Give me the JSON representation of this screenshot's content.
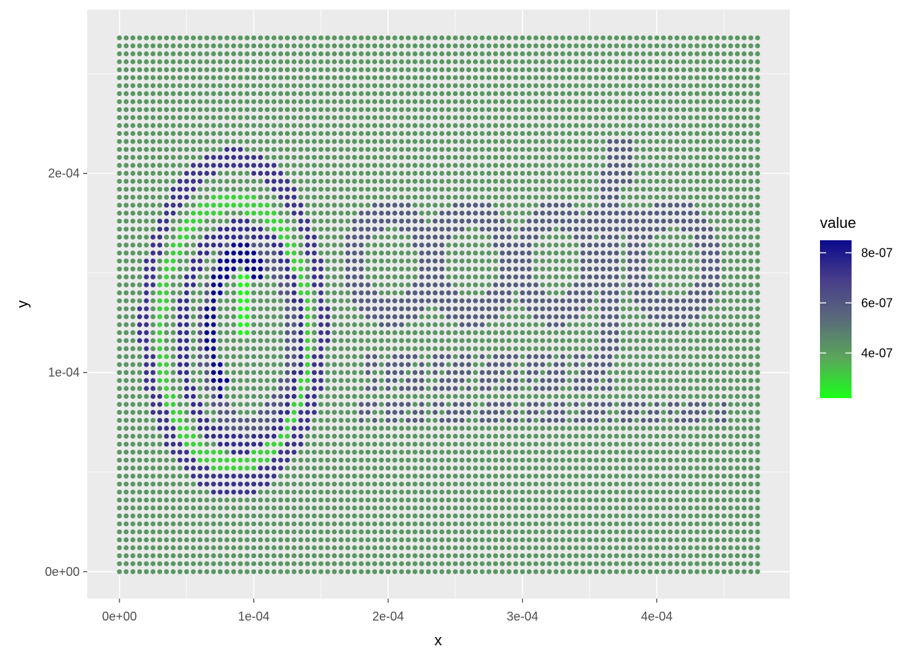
{
  "chart_data": {
    "type": "scatter",
    "title": "",
    "xlabel": "x",
    "ylabel": "y",
    "xlim": [
      -2.4e-05,
      0.000499
    ],
    "ylim": [
      -1.35e-05,
      0.0002822
    ],
    "x_ticks": [
      {
        "value": 0,
        "label": "0e+00"
      },
      {
        "value": 0.0001,
        "label": "1e-04"
      },
      {
        "value": 0.0002,
        "label": "2e-04"
      },
      {
        "value": 0.0003,
        "label": "3e-04"
      },
      {
        "value": 0.0004,
        "label": "4e-04"
      }
    ],
    "y_ticks": [
      {
        "value": 0,
        "label": "0e+00"
      },
      {
        "value": 0.0001,
        "label": "1e-04"
      },
      {
        "value": 0.0002,
        "label": "2e-04"
      }
    ],
    "grid": true,
    "panel_background": "#ebebeb",
    "grid_color": "#ffffff",
    "point_grid": {
      "x_start": 0,
      "x_end": 0.000475,
      "x_step": 5e-06,
      "y_start": 0,
      "y_end": 0.000268,
      "y_step": 4e-06,
      "background_value": 4.2e-07
    },
    "features": [
      {
        "kind": "ring",
        "cx": 8.5e-05,
        "cy": 0.000125,
        "rx": 6.6e-05,
        "ry": 8.2e-05,
        "value": 7.2e-07,
        "width": 4.5e-06
      },
      {
        "kind": "ring",
        "cx": 8.5e-05,
        "cy": 0.00012,
        "rx": 5.5e-05,
        "ry": 6.6e-05,
        "value": 3e-07,
        "width": 4.2e-06
      },
      {
        "kind": "ring",
        "cx": 9e-05,
        "cy": 0.000118,
        "rx": 4.4e-05,
        "ry": 5.4e-05,
        "value": 7.4e-07,
        "width": 4.2e-06
      },
      {
        "kind": "ring",
        "cx": 9.5e-05,
        "cy": 0.000118,
        "rx": 3.3e-05,
        "ry": 4.5e-05,
        "value": 6e-07,
        "width": 4e-06
      },
      {
        "kind": "arc",
        "cx": 9e-05,
        "cy": 0.000122,
        "rx": 2.2e-05,
        "ry": 3.8e-05,
        "value": 8.5e-07,
        "width": 4.2e-06,
        "start": 60,
        "end": 250
      },
      {
        "kind": "blob",
        "cx": 9.3e-05,
        "cy": 0.000133,
        "rx": 6e-06,
        "ry": 1.8e-05,
        "value": 2.4e-07
      },
      {
        "kind": "ellipse",
        "cx": 0.000202,
        "cy": 0.000155,
        "rx": 3.6e-05,
        "ry": 3.2e-05,
        "value": 5.8e-07
      },
      {
        "kind": "ellipse",
        "cx": 0.000262,
        "cy": 0.000155,
        "rx": 3.6e-05,
        "ry": 3.2e-05,
        "value": 5.8e-07
      },
      {
        "kind": "ellipse",
        "cx": 0.000325,
        "cy": 0.000155,
        "rx": 3.2e-05,
        "ry": 3.2e-05,
        "value": 5.8e-07
      },
      {
        "kind": "rect",
        "x0": 0.000358,
        "x1": 0.000372,
        "y0": 0.00011,
        "y1": 0.0002,
        "value": 5.8e-07
      },
      {
        "kind": "rect",
        "x0": 0.000365,
        "x1": 0.000385,
        "y0": 0.000195,
        "y1": 0.000218,
        "value": 5.8e-07
      },
      {
        "kind": "rect",
        "x0": 0.000348,
        "x1": 0.000388,
        "y0": 0.00017,
        "y1": 0.000182,
        "value": 5.8e-07
      },
      {
        "kind": "ellipse",
        "cx": 0.000412,
        "cy": 0.000155,
        "rx": 3.6e-05,
        "ry": 3.2e-05,
        "value": 5.8e-07
      },
      {
        "kind": "text_row",
        "x0": 0.000182,
        "x1": 0.000372,
        "y0": 9.2e-05,
        "y1": 0.00011,
        "value": 5.8e-07
      },
      {
        "kind": "text_row",
        "x0": 0.00018,
        "x1": 0.000452,
        "y0": 7.3e-05,
        "y1": 8.5e-05,
        "value": 5.8e-07
      }
    ],
    "legend": {
      "title": "value",
      "position": "right",
      "limits": [
        2.2e-07,
        8.5e-07
      ],
      "breaks": [
        {
          "value": 8e-07,
          "label": "8e-07"
        },
        {
          "value": 6e-07,
          "label": "6e-07"
        },
        {
          "value": 4e-07,
          "label": "4e-07"
        }
      ],
      "colors": [
        "#1aff1a",
        "#5aa75a",
        "#5a6a7a",
        "#483d8b",
        "#0a0a8c"
      ]
    }
  }
}
